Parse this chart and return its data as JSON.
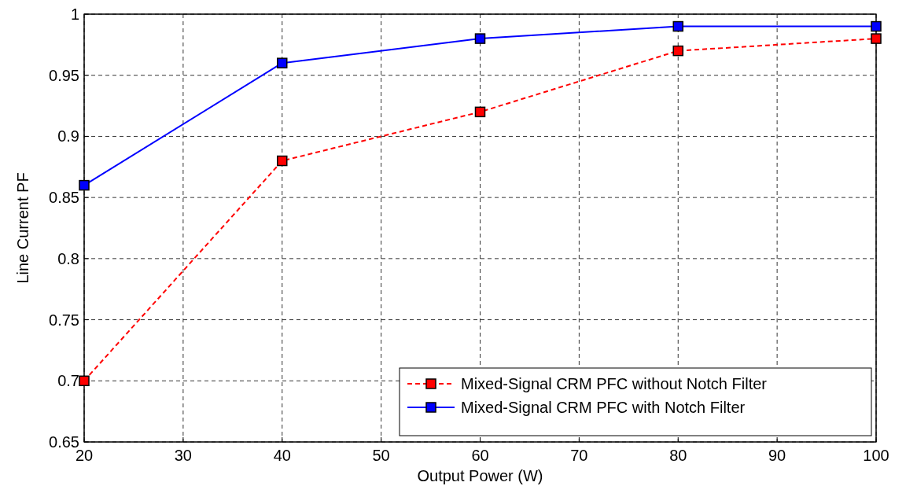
{
  "chart_data": {
    "type": "line",
    "xlabel": "Output Power (W)",
    "ylabel": "Line Current PF",
    "x": [
      20,
      40,
      60,
      80,
      100
    ],
    "series": [
      {
        "name": "Mixed-Signal CRM PFC without Notch Filter",
        "color": "#ff0000",
        "line_style": "dashed",
        "values": [
          0.7,
          0.88,
          0.92,
          0.97,
          0.98
        ]
      },
      {
        "name": "Mixed-Signal CRM PFC with Notch Filter",
        "color": "#0000ff",
        "line_style": "solid",
        "values": [
          0.86,
          0.96,
          0.98,
          0.99,
          0.99
        ]
      }
    ],
    "xlim": [
      20,
      100
    ],
    "xticks": [
      20,
      30,
      40,
      50,
      60,
      70,
      80,
      90,
      100
    ],
    "ylim": [
      0.65,
      1
    ],
    "yticks": [
      0.65,
      0.7,
      0.75,
      0.8,
      0.85,
      0.9,
      0.95,
      1
    ],
    "grid": true,
    "legend": "bottom right",
    "marker": "square"
  }
}
